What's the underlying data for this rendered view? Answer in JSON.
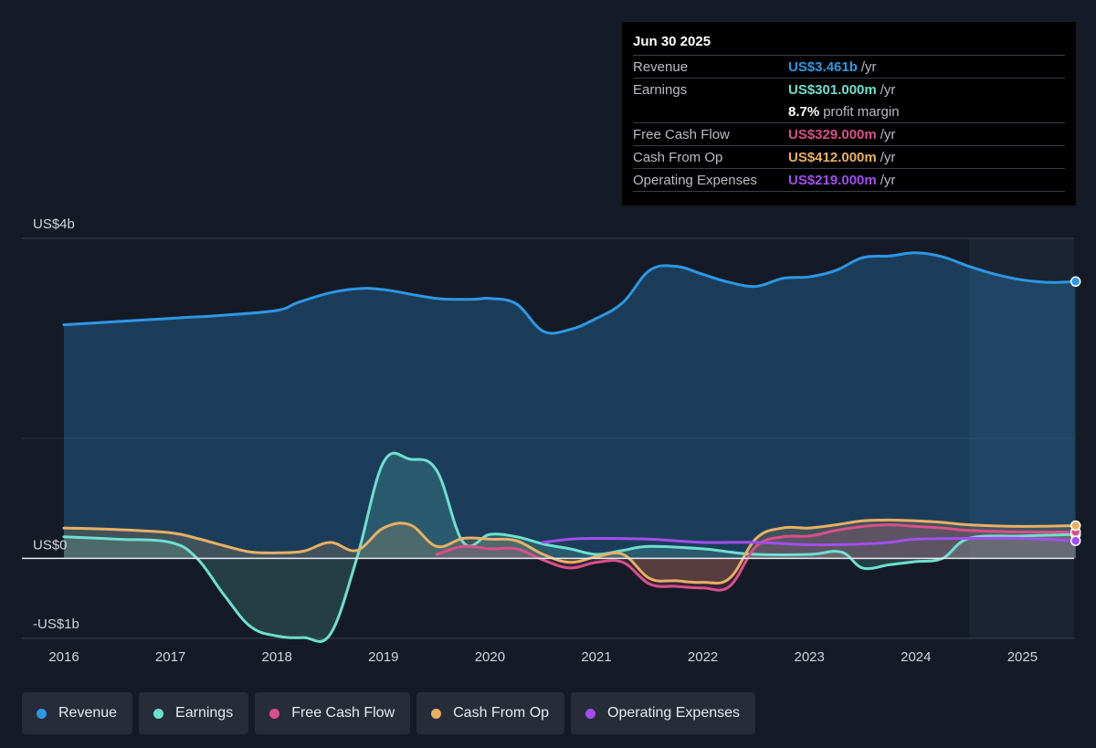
{
  "tooltip": {
    "date": "Jun 30 2025",
    "rows": [
      {
        "label": "Revenue",
        "value": "US$3.461b",
        "unit": "/yr",
        "color": "#2d98e4"
      },
      {
        "label": "Earnings",
        "value": "US$301.000m",
        "unit": "/yr",
        "color": "#6ee0cf"
      },
      {
        "label": "",
        "value": "8.7%",
        "unit": "profit margin",
        "color": "#ffffff"
      },
      {
        "label": "Free Cash Flow",
        "value": "US$329.000m",
        "unit": "/yr",
        "color": "#d9508a"
      },
      {
        "label": "Cash From Op",
        "value": "US$412.000m",
        "unit": "/yr",
        "color": "#e8b064"
      },
      {
        "label": "Operating Expenses",
        "value": "US$219.000m",
        "unit": "/yr",
        "color": "#a24ef0"
      }
    ]
  },
  "legend": [
    {
      "label": "Revenue",
      "color": "#2d98e4"
    },
    {
      "label": "Earnings",
      "color": "#6ee0cf"
    },
    {
      "label": "Free Cash Flow",
      "color": "#d9508a"
    },
    {
      "label": "Cash From Op",
      "color": "#e8b064"
    },
    {
      "label": "Operating Expenses",
      "color": "#a24ef0"
    }
  ],
  "chart_data": {
    "type": "area",
    "y_tick_labels": [
      "US$4b",
      "US$0",
      "-US$1b"
    ],
    "ylim": [
      -1,
      4
    ],
    "xlim": [
      2015.6,
      2025.5
    ],
    "x_tick_labels": [
      "2016",
      "2017",
      "2018",
      "2019",
      "2020",
      "2021",
      "2022",
      "2023",
      "2024",
      "2025"
    ],
    "x_ticks": [
      2016,
      2017,
      2018,
      2019,
      2020,
      2021,
      2022,
      2023,
      2024,
      2025
    ],
    "forecast_start": 2024.5,
    "series": [
      {
        "name": "Revenue",
        "color": "#2d98e4",
        "fill": true,
        "points": [
          [
            2016,
            2.92
          ],
          [
            2017,
            3.0
          ],
          [
            2017.5,
            3.04
          ],
          [
            2018,
            3.1
          ],
          [
            2018.2,
            3.2
          ],
          [
            2018.5,
            3.32
          ],
          [
            2018.75,
            3.37
          ],
          [
            2019,
            3.36
          ],
          [
            2019.5,
            3.25
          ],
          [
            2019.85,
            3.24
          ],
          [
            2020,
            3.25
          ],
          [
            2020.25,
            3.18
          ],
          [
            2020.5,
            2.84
          ],
          [
            2020.75,
            2.86
          ],
          [
            2021,
            3.0
          ],
          [
            2021.25,
            3.2
          ],
          [
            2021.5,
            3.6
          ],
          [
            2021.75,
            3.65
          ],
          [
            2022,
            3.55
          ],
          [
            2022.25,
            3.45
          ],
          [
            2022.5,
            3.4
          ],
          [
            2022.75,
            3.5
          ],
          [
            2023,
            3.52
          ],
          [
            2023.25,
            3.6
          ],
          [
            2023.5,
            3.76
          ],
          [
            2023.75,
            3.78
          ],
          [
            2024,
            3.82
          ],
          [
            2024.25,
            3.77
          ],
          [
            2024.5,
            3.65
          ],
          [
            2024.75,
            3.55
          ],
          [
            2025,
            3.48
          ],
          [
            2025.25,
            3.45
          ],
          [
            2025.5,
            3.46
          ]
        ]
      },
      {
        "name": "Earnings",
        "color": "#6ee0cf",
        "fill": true,
        "points": [
          [
            2016,
            0.27
          ],
          [
            2016.5,
            0.24
          ],
          [
            2017,
            0.2
          ],
          [
            2017.25,
            0.0
          ],
          [
            2017.5,
            -0.45
          ],
          [
            2017.75,
            -0.85
          ],
          [
            2018,
            -0.97
          ],
          [
            2018.25,
            -0.99
          ],
          [
            2018.5,
            -0.95
          ],
          [
            2018.75,
            0.0
          ],
          [
            2019,
            1.2
          ],
          [
            2019.25,
            1.24
          ],
          [
            2019.5,
            1.1
          ],
          [
            2019.75,
            0.2
          ],
          [
            2020,
            0.3
          ],
          [
            2020.25,
            0.27
          ],
          [
            2020.5,
            0.18
          ],
          [
            2020.75,
            0.12
          ],
          [
            2021,
            0.05
          ],
          [
            2021.25,
            0.1
          ],
          [
            2021.5,
            0.15
          ],
          [
            2022,
            0.12
          ],
          [
            2022.25,
            0.08
          ],
          [
            2022.5,
            0.05
          ],
          [
            2023,
            0.05
          ],
          [
            2023.3,
            0.08
          ],
          [
            2023.5,
            -0.12
          ],
          [
            2023.75,
            -0.08
          ],
          [
            2024,
            -0.04
          ],
          [
            2024.25,
            0.0
          ],
          [
            2024.5,
            0.25
          ],
          [
            2025,
            0.28
          ],
          [
            2025.5,
            0.3
          ]
        ]
      },
      {
        "name": "Free Cash Flow",
        "color": "#d9508a",
        "fill": true,
        "points": [
          [
            2019.5,
            0.05
          ],
          [
            2019.75,
            0.15
          ],
          [
            2020,
            0.12
          ],
          [
            2020.25,
            0.12
          ],
          [
            2020.5,
            -0.02
          ],
          [
            2020.75,
            -0.12
          ],
          [
            2021,
            -0.05
          ],
          [
            2021.25,
            -0.05
          ],
          [
            2021.5,
            -0.32
          ],
          [
            2021.75,
            -0.35
          ],
          [
            2022,
            -0.37
          ],
          [
            2022.25,
            -0.35
          ],
          [
            2022.5,
            0.15
          ],
          [
            2022.75,
            0.27
          ],
          [
            2023,
            0.28
          ],
          [
            2023.25,
            0.35
          ],
          [
            2023.5,
            0.4
          ],
          [
            2023.75,
            0.42
          ],
          [
            2024,
            0.4
          ],
          [
            2024.25,
            0.38
          ],
          [
            2024.5,
            0.35
          ],
          [
            2025,
            0.33
          ],
          [
            2025.5,
            0.33
          ]
        ]
      },
      {
        "name": "Cash From Op",
        "color": "#e8b064",
        "fill": true,
        "points": [
          [
            2016,
            0.38
          ],
          [
            2016.5,
            0.36
          ],
          [
            2017,
            0.32
          ],
          [
            2017.25,
            0.25
          ],
          [
            2017.5,
            0.16
          ],
          [
            2017.75,
            0.08
          ],
          [
            2018,
            0.07
          ],
          [
            2018.25,
            0.09
          ],
          [
            2018.5,
            0.2
          ],
          [
            2018.75,
            0.1
          ],
          [
            2019,
            0.38
          ],
          [
            2019.25,
            0.42
          ],
          [
            2019.5,
            0.15
          ],
          [
            2019.75,
            0.25
          ],
          [
            2020,
            0.24
          ],
          [
            2020.25,
            0.22
          ],
          [
            2020.5,
            0.05
          ],
          [
            2020.75,
            -0.05
          ],
          [
            2021,
            0.02
          ],
          [
            2021.25,
            0.05
          ],
          [
            2021.5,
            -0.25
          ],
          [
            2021.75,
            -0.28
          ],
          [
            2022,
            -0.3
          ],
          [
            2022.25,
            -0.25
          ],
          [
            2022.5,
            0.25
          ],
          [
            2022.75,
            0.38
          ],
          [
            2023,
            0.38
          ],
          [
            2023.25,
            0.42
          ],
          [
            2023.5,
            0.47
          ],
          [
            2023.75,
            0.48
          ],
          [
            2024,
            0.47
          ],
          [
            2024.25,
            0.45
          ],
          [
            2024.5,
            0.42
          ],
          [
            2025,
            0.4
          ],
          [
            2025.5,
            0.41
          ]
        ]
      },
      {
        "name": "Operating Expenses",
        "color": "#a24ef0",
        "fill": false,
        "points": [
          [
            2020.5,
            0.2
          ],
          [
            2020.75,
            0.24
          ],
          [
            2021,
            0.25
          ],
          [
            2021.5,
            0.24
          ],
          [
            2022,
            0.2
          ],
          [
            2022.5,
            0.2
          ],
          [
            2023,
            0.17
          ],
          [
            2023.5,
            0.18
          ],
          [
            2023.75,
            0.2
          ],
          [
            2024,
            0.24
          ],
          [
            2024.5,
            0.25
          ],
          [
            2025,
            0.25
          ],
          [
            2025.5,
            0.22
          ]
        ]
      }
    ]
  }
}
